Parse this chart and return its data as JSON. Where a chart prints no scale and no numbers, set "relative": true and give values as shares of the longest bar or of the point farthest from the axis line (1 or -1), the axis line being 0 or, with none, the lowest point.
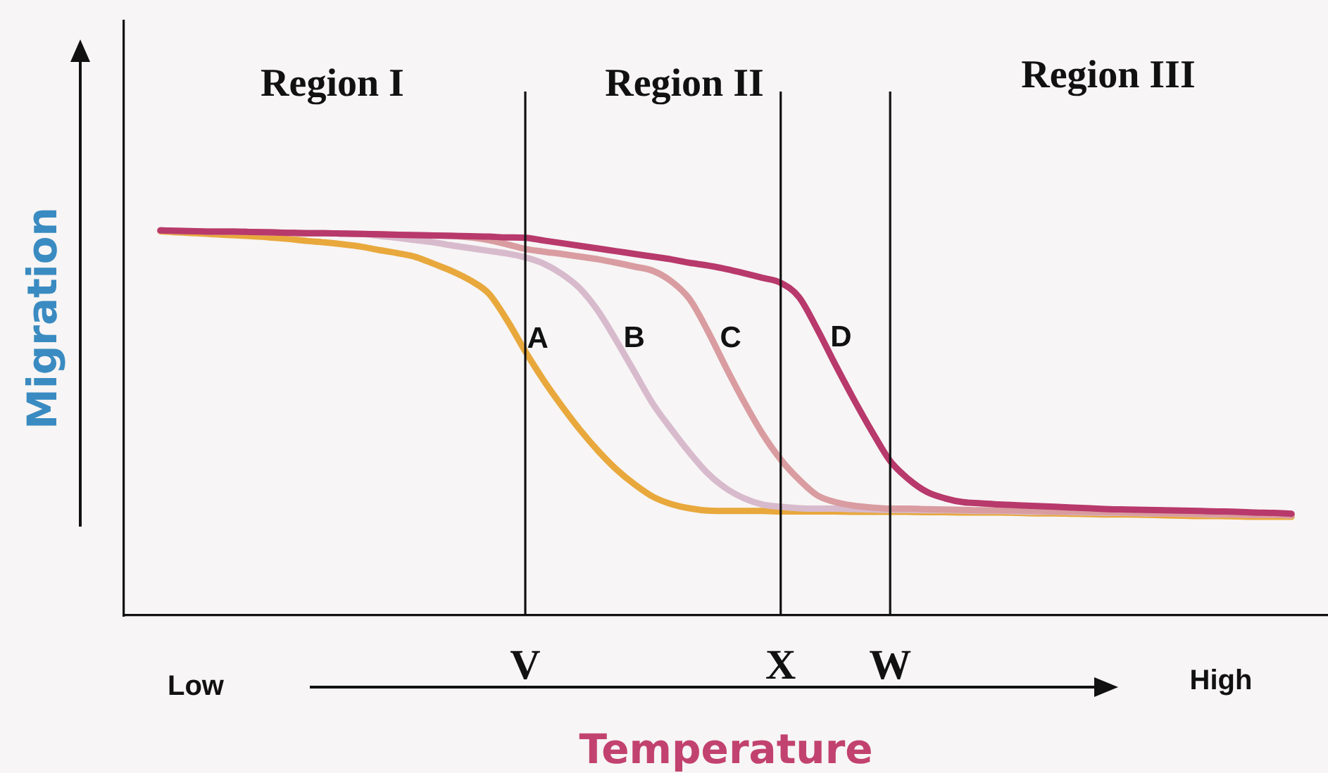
{
  "chart_data": {
    "type": "line",
    "relative": true,
    "xlabel": "Temperature",
    "ylabel": "Migration",
    "marker": "none",
    "line_style": "solid",
    "grid": "x",
    "categories": [
      null,
      null,
      null,
      null,
      null,
      null,
      null,
      null,
      null,
      null,
      null,
      null,
      null,
      null,
      null,
      null,
      null,
      null,
      null,
      null,
      "V",
      null,
      null,
      null,
      null,
      null,
      null,
      null,
      null,
      null,
      null,
      null,
      null,
      null,
      "X",
      null,
      null,
      null,
      null,
      null,
      "W",
      null,
      null,
      null,
      null,
      null,
      null,
      null,
      null,
      null,
      null,
      null,
      null,
      null,
      null,
      null,
      null,
      null,
      null,
      null,
      null,
      null,
      null
    ],
    "series": [
      {
        "name": "A",
        "color": "#e8a83c",
        "values": [
          0.998,
          0.995,
          0.993,
          0.99,
          0.988,
          0.985,
          0.982,
          0.978,
          0.973,
          0.969,
          0.964,
          0.958,
          0.949,
          0.941,
          0.931,
          0.913,
          0.894,
          0.87,
          0.836,
          0.767,
          0.686,
          0.611,
          0.544,
          0.482,
          0.427,
          0.379,
          0.34,
          0.308,
          0.289,
          0.278,
          0.272,
          0.271,
          0.271,
          0.271,
          0.27,
          0.27,
          0.27,
          0.27,
          0.269,
          0.269,
          0.269,
          0.269,
          0.268,
          0.268,
          0.267,
          0.267,
          0.267,
          0.266,
          0.265,
          0.265,
          0.264,
          0.263,
          0.262,
          0.262,
          0.261,
          0.26,
          0.259,
          0.258,
          0.258,
          0.257,
          0.256,
          0.256,
          0.256
        ]
      },
      {
        "name": "B",
        "color": "#d8bacd",
        "values": [
          1,
          0.999,
          0.998,
          0.997,
          0.997,
          0.996,
          0.995,
          0.994,
          0.993,
          0.993,
          0.992,
          0.991,
          0.986,
          0.981,
          0.975,
          0.969,
          0.961,
          0.954,
          0.947,
          0.94,
          0.93,
          0.914,
          0.887,
          0.849,
          0.79,
          0.713,
          0.631,
          0.549,
          0.484,
          0.423,
          0.369,
          0.33,
          0.304,
          0.288,
          0.282,
          0.278,
          0.277,
          0.277,
          0.276,
          0.275,
          0.274,
          0.274,
          0.273,
          0.273,
          0.272,
          0.271,
          0.271,
          0.27,
          0.269,
          0.269,
          0.268,
          0.267,
          0.266,
          0.266,
          0.265,
          0.265,
          0.264,
          0.263,
          0.262,
          0.262,
          0.261,
          0.261,
          0.26
        ]
      },
      {
        "name": "C",
        "color": "#d99ca0",
        "values": [
          1,
          0.999,
          0.998,
          0.997,
          0.997,
          0.996,
          0.995,
          0.994,
          0.993,
          0.993,
          0.992,
          0.991,
          0.99,
          0.989,
          0.988,
          0.987,
          0.986,
          0.982,
          0.975,
          0.964,
          0.952,
          0.945,
          0.939,
          0.932,
          0.925,
          0.916,
          0.906,
          0.895,
          0.868,
          0.822,
          0.739,
          0.644,
          0.554,
          0.472,
          0.405,
          0.353,
          0.312,
          0.294,
          0.285,
          0.28,
          0.277,
          0.277,
          0.276,
          0.275,
          0.274,
          0.273,
          0.273,
          0.272,
          0.271,
          0.27,
          0.27,
          0.269,
          0.268,
          0.267,
          0.266,
          0.265,
          0.265,
          0.264,
          0.263,
          0.262,
          0.261,
          0.261,
          0.26
        ]
      },
      {
        "name": "D",
        "color": "#b8396b",
        "values": [
          1,
          0.999,
          0.998,
          0.997,
          0.997,
          0.996,
          0.995,
          0.994,
          0.993,
          0.993,
          0.992,
          0.991,
          0.99,
          0.989,
          0.988,
          0.987,
          0.986,
          0.985,
          0.984,
          0.982,
          0.981,
          0.974,
          0.967,
          0.96,
          0.953,
          0.946,
          0.939,
          0.932,
          0.925,
          0.916,
          0.909,
          0.9,
          0.889,
          0.877,
          0.864,
          0.827,
          0.744,
          0.651,
          0.562,
          0.478,
          0.401,
          0.354,
          0.321,
          0.304,
          0.294,
          0.291,
          0.288,
          0.286,
          0.284,
          0.282,
          0.28,
          0.278,
          0.276,
          0.275,
          0.274,
          0.273,
          0.272,
          0.271,
          0.27,
          0.269,
          0.267,
          0.266,
          0.264
        ]
      }
    ],
    "annotations": [
      "Region I",
      "Region II",
      "Region III",
      "Low",
      "High"
    ]
  }
}
